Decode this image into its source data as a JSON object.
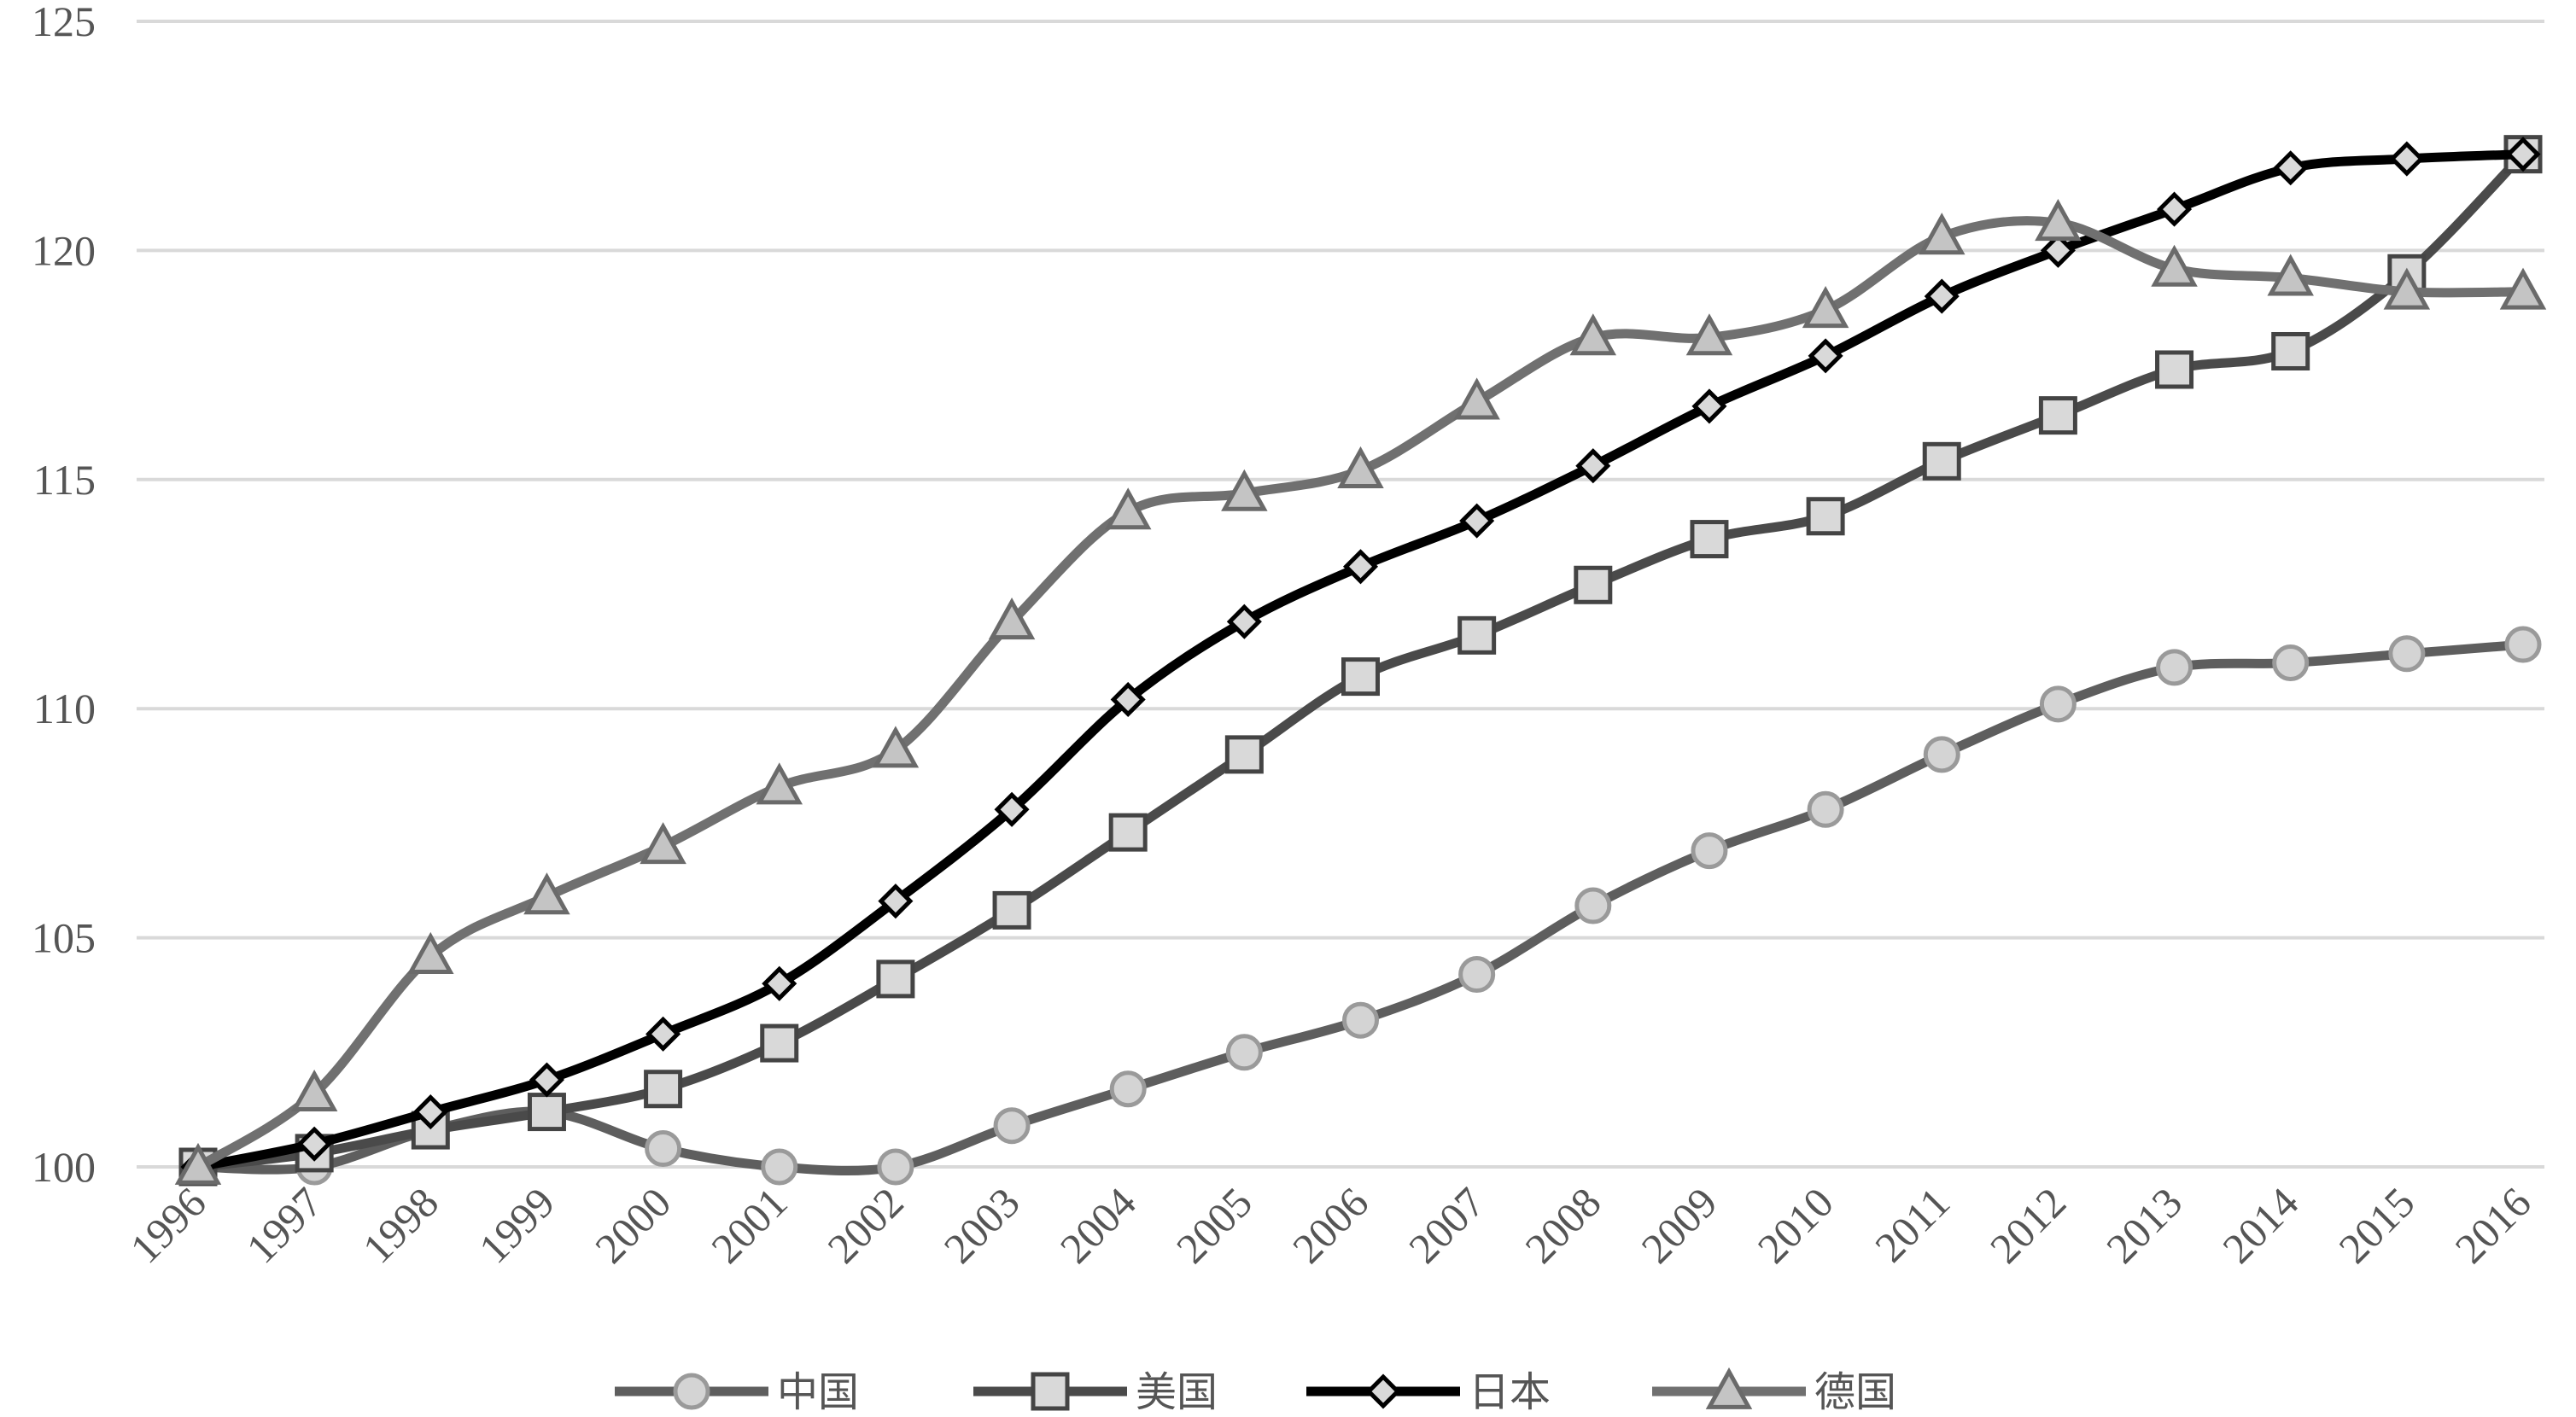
{
  "chart_data": {
    "type": "line",
    "title": "",
    "xlabel": "",
    "ylabel": "",
    "ylim": [
      100,
      125
    ],
    "yticks": [
      100,
      105,
      110,
      115,
      120,
      125
    ],
    "grid": "horizontal",
    "legend_position": "bottom",
    "categories": [
      "1996",
      "1997",
      "1998",
      "1999",
      "2000",
      "2001",
      "2002",
      "2003",
      "2004",
      "2005",
      "2006",
      "2007",
      "2008",
      "2009",
      "2010",
      "2011",
      "2012",
      "2013",
      "2014",
      "2015",
      "2016"
    ],
    "series": [
      {
        "name": "中国",
        "marker": "circle",
        "color": "#5e5e5e",
        "values": [
          100.0,
          100.0,
          100.8,
          101.2,
          100.4,
          100.0,
          100.0,
          100.9,
          101.7,
          102.5,
          103.2,
          104.2,
          105.7,
          106.9,
          107.8,
          109.0,
          110.1,
          110.9,
          111.0,
          111.2,
          111.4
        ]
      },
      {
        "name": "美国",
        "marker": "square",
        "color": "#4a4a4a",
        "values": [
          100.0,
          100.3,
          100.8,
          101.2,
          101.7,
          102.7,
          104.1,
          105.6,
          107.3,
          109.0,
          110.7,
          111.6,
          112.7,
          113.7,
          114.2,
          115.4,
          116.4,
          117.4,
          117.8,
          119.5,
          122.1
        ]
      },
      {
        "name": "日本",
        "marker": "diamond",
        "color": "#000000",
        "values": [
          100.0,
          100.5,
          101.2,
          101.9,
          102.9,
          104.0,
          105.8,
          107.8,
          110.2,
          111.9,
          113.1,
          114.1,
          115.3,
          116.6,
          117.7,
          119.0,
          120.0,
          120.9,
          121.8,
          122.0,
          122.1
        ]
      },
      {
        "name": "德国",
        "marker": "triangle",
        "color": "#707070",
        "values": [
          100.0,
          101.6,
          104.6,
          105.9,
          107.0,
          108.3,
          109.1,
          111.9,
          114.3,
          114.7,
          115.2,
          116.7,
          118.1,
          118.1,
          118.7,
          120.3,
          120.6,
          119.6,
          119.4,
          119.1,
          119.1
        ]
      }
    ]
  }
}
